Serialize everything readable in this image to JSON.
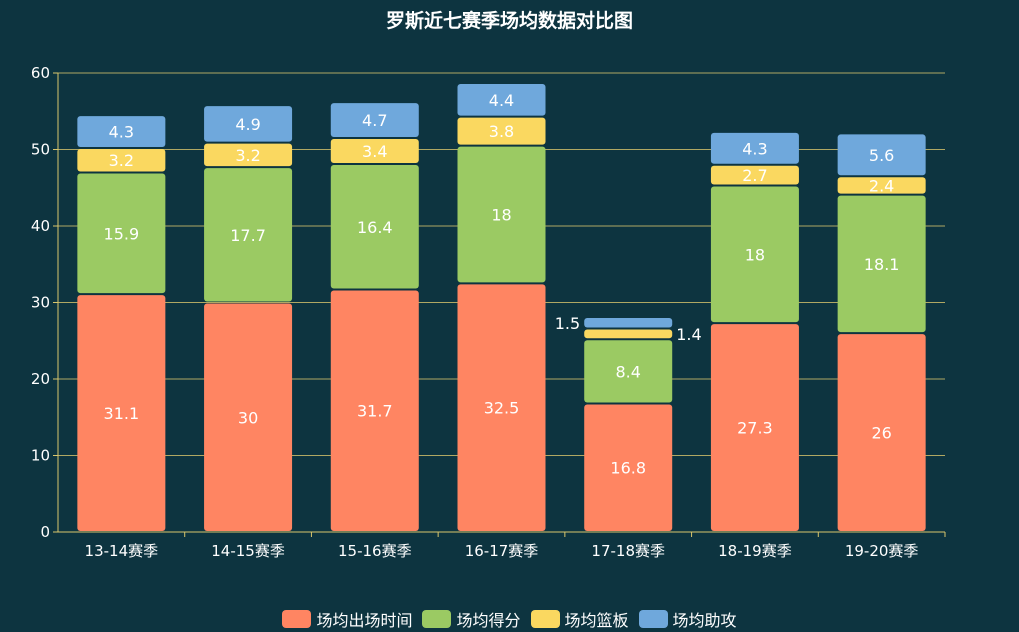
{
  "chart_data": {
    "type": "bar",
    "stacked": true,
    "title": "罗斯近七赛季场均数据对比图",
    "categories": [
      "13-14赛季",
      "14-15赛季",
      "15-16赛季",
      "16-17赛季",
      "17-18赛季",
      "18-19赛季",
      "19-20赛季"
    ],
    "series": [
      {
        "name": "场均出场时间",
        "color": "#ff8562",
        "values": [
          31.1,
          30,
          31.7,
          32.5,
          16.8,
          27.3,
          26
        ]
      },
      {
        "name": "场均得分",
        "color": "#9bca63",
        "values": [
          15.9,
          17.7,
          16.4,
          18,
          8.4,
          18,
          18.1
        ]
      },
      {
        "name": "场均篮板",
        "color": "#fad860",
        "values": [
          3.2,
          3.2,
          3.4,
          3.8,
          1.4,
          2.7,
          2.4
        ]
      },
      {
        "name": "场均助攻",
        "color": "#6fa8dc",
        "values": [
          4.3,
          4.9,
          4.7,
          4.4,
          1.5,
          4.3,
          5.6
        ]
      }
    ],
    "ylim": [
      0,
      60
    ],
    "yticks": [
      0,
      10,
      20,
      30,
      40,
      50,
      60
    ],
    "grid": true,
    "legend": "bottom",
    "axis_color": "#d9c66c"
  }
}
